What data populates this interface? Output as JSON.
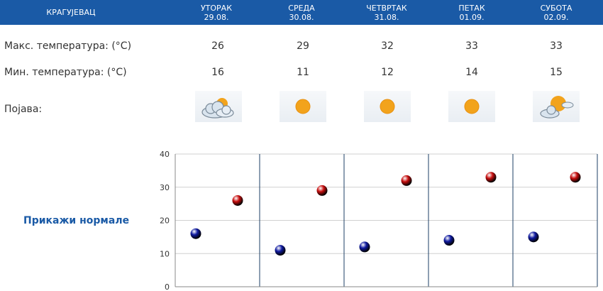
{
  "forecast": {
    "city": "КРАГУЈЕВАЦ",
    "days": [
      {
        "name": "УТОРАК",
        "date": "29.08.",
        "max": "26",
        "min": "16",
        "icon": "partly-cloudy-icon"
      },
      {
        "name": "СРЕДА",
        "date": "30.08.",
        "max": "29",
        "min": "11",
        "icon": "sun-icon"
      },
      {
        "name": "ЧЕТВРТАК",
        "date": "31.08.",
        "max": "32",
        "min": "12",
        "icon": "sun-icon"
      },
      {
        "name": "ПЕТАК",
        "date": "01.09.",
        "max": "33",
        "min": "14",
        "icon": "sun-icon"
      },
      {
        "name": "СУБОТА",
        "date": "02.09.",
        "max": "33",
        "min": "15",
        "icon": "sun-cloud-icon"
      }
    ]
  },
  "labels": {
    "max": "Макс. температура: (°C)",
    "min": "Мин. температура: (°C)",
    "phenomenon": "Појава:",
    "show_normals": "Прикажи нормале"
  },
  "chart_data": {
    "type": "scatter",
    "categories": [
      "29.08.",
      "30.08.",
      "31.08.",
      "01.09.",
      "02.09."
    ],
    "ylim": [
      0,
      40
    ],
    "yticks": [
      "0",
      "10",
      "20",
      "30",
      "40"
    ],
    "grid": true,
    "series": [
      {
        "color": "#0f1aa0",
        "values": [
          16,
          11,
          12,
          14,
          15
        ]
      },
      {
        "color": "#c80f0f",
        "values": [
          26,
          29,
          32,
          33,
          33
        ]
      }
    ]
  },
  "colors": {
    "header": "#1a5aa6",
    "sun": "#f2a31c",
    "cloud": "#d9e4ee"
  }
}
